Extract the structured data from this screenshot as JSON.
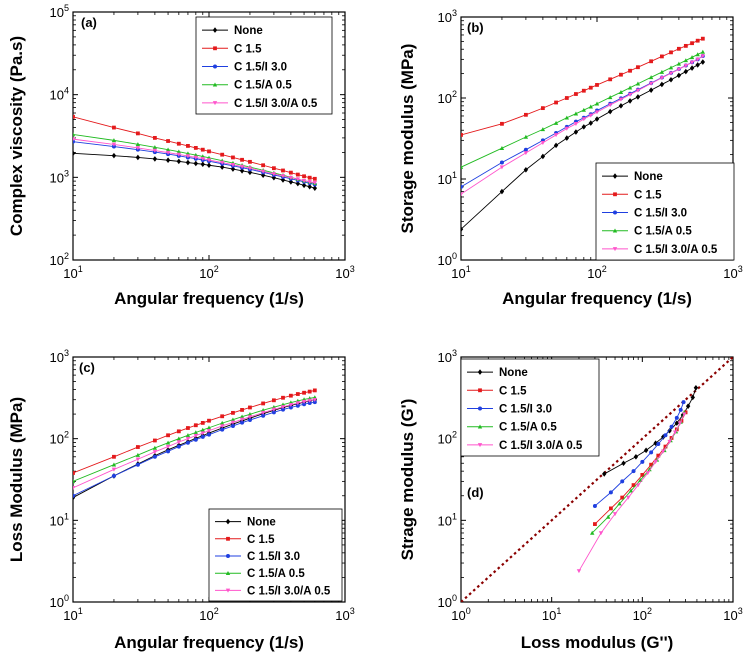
{
  "chart_data": [
    {
      "type": "line",
      "panel": "(a)",
      "xscale": "log",
      "yscale": "log",
      "xlim": [
        10,
        1000
      ],
      "ylim": [
        100,
        100000
      ],
      "xlabel": "Angular frequency (1/s)",
      "ylabel": "Complex viscosity (Pa.s)",
      "legend_loc": "top-right",
      "x": [
        10,
        20,
        30,
        40,
        50,
        60,
        70,
        80,
        90,
        100,
        125,
        150,
        175,
        200,
        250,
        300,
        350,
        400,
        450,
        500,
        550,
        600
      ],
      "series": [
        {
          "name": "None",
          "color": "#000000",
          "marker": "diamond",
          "values": [
            1950,
            1830,
            1740,
            1670,
            1610,
            1560,
            1510,
            1470,
            1440,
            1400,
            1330,
            1260,
            1200,
            1150,
            1060,
            990,
            930,
            880,
            840,
            800,
            770,
            740
          ]
        },
        {
          "name": "C 1.5",
          "color": "#e41a1c",
          "marker": "square",
          "values": [
            5400,
            4000,
            3400,
            3000,
            2750,
            2550,
            2400,
            2270,
            2160,
            2060,
            1880,
            1740,
            1630,
            1540,
            1400,
            1290,
            1210,
            1140,
            1080,
            1030,
            990,
            960
          ]
        },
        {
          "name": "C 1.5/I 3.0",
          "color": "#1f3fe0",
          "marker": "circle",
          "values": [
            2700,
            2360,
            2160,
            2020,
            1910,
            1820,
            1740,
            1680,
            1620,
            1570,
            1460,
            1380,
            1310,
            1250,
            1150,
            1070,
            1010,
            960,
            920,
            880,
            850,
            820
          ]
        },
        {
          "name": "C 1.5/A 0.5",
          "color": "#22bb22",
          "marker": "triangle",
          "values": [
            3300,
            2800,
            2510,
            2310,
            2160,
            2040,
            1940,
            1860,
            1790,
            1720,
            1590,
            1490,
            1400,
            1330,
            1220,
            1130,
            1060,
            1000,
            950,
            910,
            880,
            850
          ]
        },
        {
          "name": "C 1.5/I 3.0/A 0.5",
          "color": "#ff55cc",
          "marker": "triangle-down",
          "values": [
            2900,
            2500,
            2270,
            2110,
            1990,
            1890,
            1810,
            1740,
            1680,
            1620,
            1510,
            1420,
            1350,
            1290,
            1180,
            1100,
            1040,
            990,
            950,
            910,
            880,
            860
          ]
        }
      ]
    },
    {
      "type": "line",
      "panel": "(b)",
      "xscale": "log",
      "yscale": "log",
      "xlim": [
        10,
        1000
      ],
      "ylim": [
        1,
        1000
      ],
      "xlabel": "Angular frequency (1/s)",
      "ylabel": "Storage modulus (MPa)",
      "legend_loc": "bottom-right",
      "x": [
        10,
        20,
        30,
        40,
        50,
        60,
        70,
        80,
        90,
        100,
        125,
        150,
        175,
        200,
        250,
        300,
        350,
        400,
        450,
        500,
        550,
        600
      ],
      "series": [
        {
          "name": "None",
          "color": "#000000",
          "marker": "diamond",
          "values": [
            2.4,
            7.0,
            13,
            19,
            26,
            32,
            38,
            44,
            49,
            55,
            68,
            80,
            92,
            103,
            125,
            147,
            168,
            190,
            212,
            234,
            256,
            278
          ]
        },
        {
          "name": "C 1.5",
          "color": "#e41a1c",
          "marker": "square",
          "values": [
            35,
            48,
            62,
            75,
            88,
            100,
            112,
            123,
            134,
            145,
            170,
            194,
            217,
            240,
            284,
            326,
            366,
            405,
            440,
            475,
            510,
            540
          ]
        },
        {
          "name": "C 1.5/I 3.0",
          "color": "#1f3fe0",
          "marker": "circle",
          "values": [
            8,
            16,
            23,
            30,
            37,
            44,
            51,
            57,
            63,
            70,
            85,
            99,
            113,
            127,
            153,
            179,
            204,
            228,
            252,
            276,
            300,
            330
          ]
        },
        {
          "name": "C 1.5/A 0.5",
          "color": "#22bb22",
          "marker": "triangle",
          "values": [
            14,
            24,
            33,
            41,
            49,
            57,
            64,
            71,
            78,
            85,
            102,
            118,
            134,
            150,
            180,
            209,
            237,
            264,
            291,
            318,
            345,
            370
          ]
        },
        {
          "name": "C 1.5/I 3.0/A 0.5",
          "color": "#ff55cc",
          "marker": "triangle-down",
          "values": [
            6.5,
            14,
            21,
            28,
            35,
            42,
            48,
            55,
            61,
            67,
            82,
            96,
            110,
            124,
            151,
            177,
            202,
            226,
            251,
            275,
            300,
            330
          ]
        }
      ]
    },
    {
      "type": "line",
      "panel": "(c)",
      "xscale": "log",
      "yscale": "log",
      "xlim": [
        10,
        1000
      ],
      "ylim": [
        1,
        1000
      ],
      "xlabel": "Angular frequency (1/s)",
      "ylabel": "Loss Modulus (MPa)",
      "legend_loc": "bottom-right",
      "x": [
        10,
        20,
        30,
        40,
        50,
        60,
        70,
        80,
        90,
        100,
        125,
        150,
        175,
        200,
        250,
        300,
        350,
        400,
        450,
        500,
        550,
        600
      ],
      "series": [
        {
          "name": "None",
          "color": "#000000",
          "marker": "diamond",
          "values": [
            19,
            35,
            49,
            62,
            73,
            83,
            92,
            101,
            109,
            117,
            135,
            151,
            165,
            178,
            202,
            222,
            240,
            255,
            268,
            280,
            290,
            300
          ]
        },
        {
          "name": "C 1.5",
          "color": "#e41a1c",
          "marker": "square",
          "values": [
            38,
            60,
            79,
            95,
            110,
            123,
            135,
            146,
            156,
            166,
            188,
            207,
            225,
            241,
            270,
            295,
            317,
            336,
            352,
            365,
            377,
            390
          ]
        },
        {
          "name": "C 1.5/I 3.0",
          "color": "#1f3fe0",
          "marker": "circle",
          "values": [
            20,
            35,
            48,
            60,
            70,
            80,
            89,
            97,
            105,
            112,
            129,
            143,
            157,
            169,
            191,
            210,
            227,
            241,
            253,
            264,
            273,
            280
          ]
        },
        {
          "name": "C 1.5/A 0.5",
          "color": "#22bb22",
          "marker": "triangle",
          "values": [
            30,
            48,
            63,
            77,
            89,
            100,
            110,
            119,
            128,
            136,
            155,
            171,
            186,
            199,
            223,
            243,
            261,
            277,
            290,
            302,
            312,
            320
          ]
        },
        {
          "name": "C 1.5/I 3.0/A 0.5",
          "color": "#ff55cc",
          "marker": "triangle-down",
          "values": [
            25,
            42,
            56,
            69,
            80,
            91,
            100,
            109,
            117,
            125,
            143,
            158,
            172,
            185,
            208,
            228,
            245,
            260,
            273,
            284,
            293,
            300
          ]
        }
      ]
    },
    {
      "type": "line",
      "panel": "(d)",
      "xscale": "log",
      "yscale": "log",
      "xlim": [
        1,
        1000
      ],
      "ylim": [
        1,
        1000
      ],
      "xlabel": "Loss modulus (G'')",
      "ylabel": "Strage modulus (G')",
      "legend_loc": "top-left",
      "reference_line": {
        "name": "G' = G''",
        "color": "#8b0000",
        "style": "dotted",
        "from": [
          1,
          1
        ],
        "to": [
          1000,
          1000
        ]
      },
      "series": [
        {
          "name": "None",
          "color": "#000000",
          "marker": "diamond",
          "x": [
            38,
            62,
            85,
            110,
            140,
            170,
            200,
            240,
            280,
            320,
            360,
            390
          ],
          "values": [
            37,
            50,
            60,
            72,
            88,
            105,
            125,
            155,
            195,
            250,
            320,
            420
          ]
        },
        {
          "name": "C 1.5",
          "color": "#e41a1c",
          "marker": "square",
          "x": [
            30,
            45,
            60,
            80,
            100,
            125,
            150,
            180,
            210,
            240,
            270,
            300
          ],
          "values": [
            9,
            14,
            19,
            27,
            36,
            48,
            62,
            80,
            102,
            130,
            165,
            210
          ]
        },
        {
          "name": "C 1.5/I 3.0",
          "color": "#1f3fe0",
          "marker": "circle",
          "x": [
            30,
            45,
            60,
            80,
            100,
            125,
            150,
            180,
            210,
            240,
            265,
            285
          ],
          "values": [
            15,
            22,
            30,
            40,
            52,
            68,
            86,
            110,
            140,
            180,
            225,
            280
          ]
        },
        {
          "name": "C 1.5/A 0.5",
          "color": "#22bb22",
          "marker": "triangle",
          "x": [
            28,
            42,
            56,
            75,
            95,
            120,
            145,
            175,
            205,
            235,
            265,
            290
          ],
          "values": [
            7,
            11,
            16,
            23,
            31,
            42,
            55,
            72,
            95,
            122,
            160,
            210
          ]
        },
        {
          "name": "C 1.5/I 3.0/A 0.5",
          "color": "#ff55cc",
          "marker": "triangle-down",
          "x": [
            20,
            35,
            50,
            70,
            90,
            115,
            140,
            170,
            200,
            230,
            260,
            290
          ],
          "values": [
            2.4,
            7,
            12,
            19,
            27,
            38,
            52,
            70,
            92,
            120,
            155,
            200
          ]
        }
      ]
    }
  ],
  "panel_count": 4
}
